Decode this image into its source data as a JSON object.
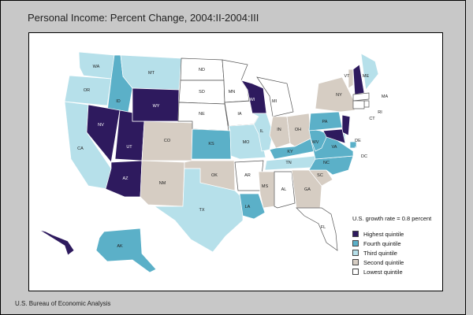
{
  "title": "Personal Income: Percent Change, 2004:II-2004:III",
  "source": "U.S. Bureau of Economic Analysis",
  "legend": {
    "heading": "U.S. growth rate = 0.8 percent",
    "items": [
      {
        "label": "Highest quintile",
        "color": "#2e1a5e"
      },
      {
        "label": "Fourth quintile",
        "color": "#5bb0c8"
      },
      {
        "label": "Third quintile",
        "color": "#b6e0ea"
      },
      {
        "label": "Second quintile",
        "color": "#d6cdc3"
      },
      {
        "label": "Lowest quintile",
        "color": "#ffffff"
      }
    ]
  },
  "states": {
    "WA": {
      "label": "WA",
      "q": 3
    },
    "OR": {
      "label": "OR",
      "q": 3
    },
    "CA": {
      "label": "CA",
      "q": 3
    },
    "ID": {
      "label": "ID",
      "q": 4
    },
    "NV": {
      "label": "NV",
      "q": 5
    },
    "UT": {
      "label": "UT",
      "q": 5
    },
    "AZ": {
      "label": "AZ",
      "q": 5
    },
    "MT": {
      "label": "MT",
      "q": 3
    },
    "WY": {
      "label": "WY",
      "q": 5
    },
    "CO": {
      "label": "CO",
      "q": 2
    },
    "NM": {
      "label": "NM",
      "q": 2
    },
    "ND": {
      "label": "ND",
      "q": 1
    },
    "SD": {
      "label": "SD",
      "q": 1
    },
    "NE": {
      "label": "NE",
      "q": 1
    },
    "KS": {
      "label": "KS",
      "q": 4
    },
    "OK": {
      "label": "OK",
      "q": 2
    },
    "TX": {
      "label": "TX",
      "q": 3
    },
    "MN": {
      "label": "MN",
      "q": 1
    },
    "IA": {
      "label": "IA",
      "q": 1
    },
    "MO": {
      "label": "MO",
      "q": 3
    },
    "AR": {
      "label": "AR",
      "q": 1
    },
    "LA": {
      "label": "LA",
      "q": 4
    },
    "WI": {
      "label": "WI",
      "q": 5
    },
    "IL": {
      "label": "IL",
      "q": 3
    },
    "MI": {
      "label": "MI",
      "q": 1
    },
    "IN": {
      "label": "IN",
      "q": 2
    },
    "OH": {
      "label": "OH",
      "q": 2
    },
    "KY": {
      "label": "KY",
      "q": 4
    },
    "TN": {
      "label": "TN",
      "q": 3
    },
    "MS": {
      "label": "MS",
      "q": 2
    },
    "AL": {
      "label": "AL",
      "q": 1
    },
    "GA": {
      "label": "GA",
      "q": 2
    },
    "FL": {
      "label": "FL",
      "q": 1
    },
    "SC": {
      "label": "SC",
      "q": 2
    },
    "NC": {
      "label": "NC",
      "q": 4
    },
    "VA": {
      "label": "VA",
      "q": 4
    },
    "WV": {
      "label": "WV",
      "q": 4
    },
    "PA": {
      "label": "PA",
      "q": 4
    },
    "NY": {
      "label": "NY",
      "q": 2
    },
    "VT": {
      "label": "VT",
      "q": 2
    },
    "NH": {
      "label": "NH",
      "q": 5
    },
    "ME": {
      "label": "ME",
      "q": 3
    },
    "MA": {
      "label": "MA",
      "q": 1
    },
    "RI": {
      "label": "RI",
      "q": 1
    },
    "CT": {
      "label": "CT",
      "q": 1
    },
    "NJ": {
      "label": "NJ",
      "q": 5
    },
    "DE": {
      "label": "DE",
      "q": 3
    },
    "MD": {
      "label": "MD",
      "q": 5
    },
    "DC": {
      "label": "DC",
      "q": 4
    },
    "AK": {
      "label": "AK",
      "q": 4
    },
    "HI": {
      "label": "HI",
      "q": 5
    }
  }
}
